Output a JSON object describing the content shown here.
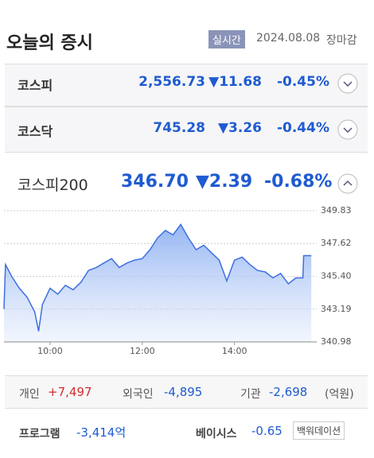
{
  "header": {
    "title": "오늘의 증시",
    "badge": "실시간",
    "date": "2024.08.08",
    "status": "장마감"
  },
  "indices": [
    {
      "name": "코스피",
      "value": "2,556.73",
      "change": "▼11.68",
      "rate": "-0.45%"
    },
    {
      "name": "코스닥",
      "value": "745.28",
      "change": "▼3.26",
      "rate": "-0.44%"
    },
    {
      "name": "코스피200",
      "value": "346.70",
      "change": "▼2.39",
      "rate": "-0.68%"
    }
  ],
  "chart_data": {
    "type": "line",
    "color": "#3d6fe0",
    "x": [
      540,
      542,
      550,
      560,
      570,
      580,
      585,
      590,
      600,
      610,
      620,
      630,
      640,
      650,
      660,
      670,
      680,
      690,
      700,
      710,
      720,
      730,
      740,
      750,
      760,
      770,
      780,
      790,
      800,
      810,
      820,
      830,
      840,
      850,
      860,
      870,
      880,
      890,
      900,
      910,
      920,
      929,
      930,
      940
    ],
    "values": [
      343.2,
      346.2,
      345.4,
      344.6,
      344.0,
      343.0,
      341.7,
      343.5,
      344.6,
      344.2,
      344.8,
      344.5,
      345.0,
      345.8,
      346.0,
      346.3,
      346.6,
      346.0,
      346.3,
      346.5,
      346.6,
      347.2,
      348.0,
      348.5,
      348.2,
      348.9,
      348.0,
      347.2,
      347.5,
      347.0,
      346.5,
      345.1,
      346.5,
      346.7,
      346.2,
      345.8,
      345.7,
      345.3,
      345.6,
      344.9,
      345.3,
      345.3,
      346.8,
      346.8
    ],
    "xlim": [
      540,
      947
    ],
    "xticks": [
      {
        "value": 600,
        "label": "10:00"
      },
      {
        "value": 720,
        "label": "12:00"
      },
      {
        "value": 840,
        "label": "14:00"
      }
    ],
    "ylim": [
      340.98,
      349.83
    ],
    "yticks": [
      340.98,
      343.19,
      {
        "value": 345.4,
        "label": "345.40"
      },
      347.62,
      349.83
    ],
    "grid": true
  },
  "investors": {
    "items": [
      {
        "label": "개인",
        "value": "+7,497"
      },
      {
        "label": "외국인",
        "value": "-4,895"
      },
      {
        "label": "기관",
        "value": "-2,698"
      }
    ],
    "unit": "(억원)"
  },
  "program": {
    "label": "프로그램",
    "value": "-3,414억"
  },
  "basis": {
    "label": "베이시스",
    "value": "-0.65",
    "button": "백워데이션"
  }
}
